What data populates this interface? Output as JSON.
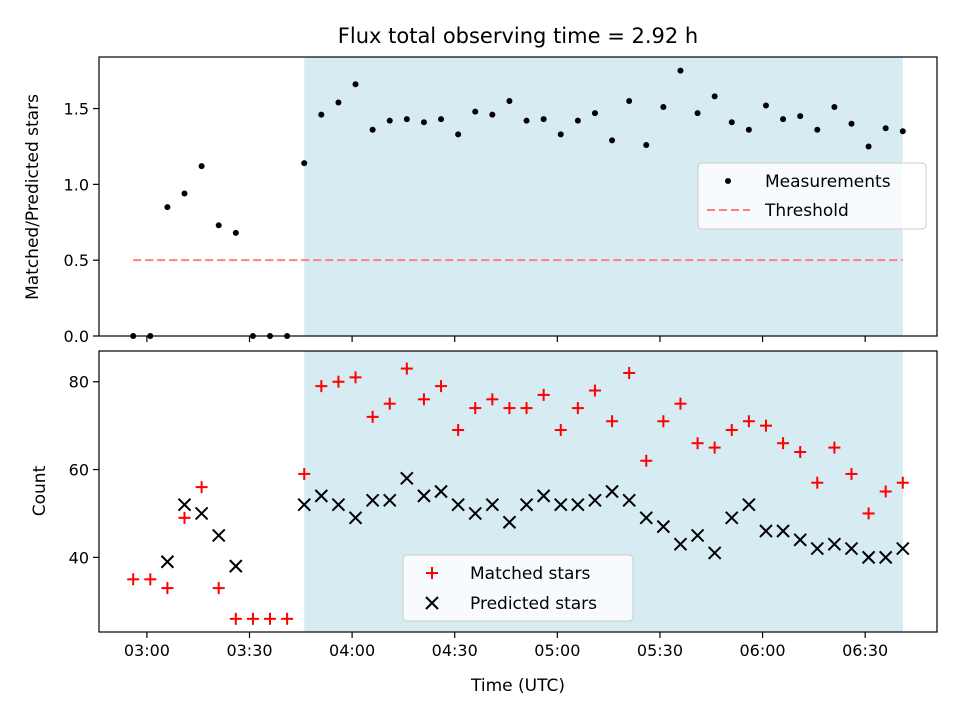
{
  "chart_data": [
    {
      "type": "scatter",
      "title": "Flux total observing time = 2.92 h",
      "ylabel": "Matched/Predicted stars",
      "xlabel": "",
      "ylim": [
        0,
        1.84
      ],
      "yticks": [
        "0.0",
        "0.5",
        "1.0",
        "1.5"
      ],
      "x_axis": "time (UTC), HH:MM",
      "xlim": [
        "02:46",
        "06:51"
      ],
      "shaded_region": {
        "start": "03:46",
        "end": "06:41",
        "color": "#add8e6"
      },
      "legend": {
        "placement": "center-right",
        "entries": [
          "Measurements",
          "Threshold"
        ]
      },
      "series": [
        {
          "name": "Measurements",
          "marker": "dot",
          "color": "#000000",
          "x": [
            "02:56",
            "03:01",
            "03:06",
            "03:11",
            "03:16",
            "03:21",
            "03:26",
            "03:31",
            "03:36",
            "03:41",
            "03:46",
            "03:51",
            "03:56",
            "04:01",
            "04:06",
            "04:11",
            "04:16",
            "04:21",
            "04:26",
            "04:31",
            "04:36",
            "04:41",
            "04:46",
            "04:51",
            "04:56",
            "05:01",
            "05:06",
            "05:11",
            "05:16",
            "05:21",
            "05:26",
            "05:31",
            "05:36",
            "05:41",
            "05:46",
            "05:51",
            "05:56",
            "06:01",
            "06:06",
            "06:11",
            "06:16",
            "06:21",
            "06:26",
            "06:31",
            "06:36",
            "06:41"
          ],
          "y": [
            0.0,
            0.0,
            0.85,
            0.94,
            1.12,
            0.73,
            0.68,
            0.0,
            0.0,
            0.0,
            1.14,
            1.46,
            1.54,
            1.66,
            1.36,
            1.42,
            1.43,
            1.41,
            1.43,
            1.33,
            1.48,
            1.46,
            1.55,
            1.42,
            1.43,
            1.33,
            1.42,
            1.47,
            1.29,
            1.55,
            1.26,
            1.51,
            1.75,
            1.47,
            1.58,
            1.41,
            1.36,
            1.52,
            1.43,
            1.45,
            1.36,
            1.51,
            1.4,
            1.25,
            1.37,
            1.35
          ]
        },
        {
          "name": "Threshold",
          "style": "dashed",
          "color": "#ff7f7f",
          "x": [
            "02:56",
            "06:41"
          ],
          "y": [
            0.5,
            0.5
          ]
        }
      ]
    },
    {
      "type": "scatter",
      "title": "",
      "ylabel": "Count",
      "xlabel": "Time (UTC)",
      "ylim": [
        23,
        87
      ],
      "yticks": [
        "40",
        "60",
        "80"
      ],
      "x_axis": "time (UTC), HH:MM",
      "xlim": [
        "02:46",
        "06:51"
      ],
      "xticks": [
        "03:00",
        "03:30",
        "04:00",
        "04:30",
        "05:00",
        "05:30",
        "06:00",
        "06:30"
      ],
      "shaded_region": {
        "start": "03:46",
        "end": "06:41",
        "color": "#add8e6"
      },
      "legend": {
        "placement": "lower-center",
        "entries": [
          "Matched stars",
          "Predicted stars"
        ]
      },
      "series": [
        {
          "name": "Matched stars",
          "marker": "plus",
          "color": "#ff0000",
          "x": [
            "02:56",
            "03:01",
            "03:06",
            "03:11",
            "03:16",
            "03:21",
            "03:26",
            "03:31",
            "03:36",
            "03:41",
            "03:46",
            "03:51",
            "03:56",
            "04:01",
            "04:06",
            "04:11",
            "04:16",
            "04:21",
            "04:26",
            "04:31",
            "04:36",
            "04:41",
            "04:46",
            "04:51",
            "04:56",
            "05:01",
            "05:06",
            "05:11",
            "05:16",
            "05:21",
            "05:26",
            "05:31",
            "05:36",
            "05:41",
            "05:46",
            "05:51",
            "05:56",
            "06:01",
            "06:06",
            "06:11",
            "06:16",
            "06:21",
            "06:26",
            "06:31",
            "06:36",
            "06:41"
          ],
          "y": [
            35,
            35,
            33,
            49,
            56,
            33,
            26,
            26,
            26,
            26,
            59,
            79,
            80,
            81,
            72,
            75,
            83,
            76,
            79,
            69,
            74,
            76,
            74,
            74,
            77,
            69,
            74,
            78,
            71,
            82,
            62,
            71,
            75,
            66,
            65,
            69,
            71,
            70,
            66,
            64,
            57,
            65,
            59,
            50,
            55,
            57
          ]
        },
        {
          "name": "Predicted stars",
          "marker": "x",
          "color": "#000000",
          "x": [
            "03:06",
            "03:11",
            "03:16",
            "03:21",
            "03:26",
            "03:46",
            "03:51",
            "03:56",
            "04:01",
            "04:06",
            "04:11",
            "04:16",
            "04:21",
            "04:26",
            "04:31",
            "04:36",
            "04:41",
            "04:46",
            "04:51",
            "04:56",
            "05:01",
            "05:06",
            "05:11",
            "05:16",
            "05:21",
            "05:26",
            "05:31",
            "05:36",
            "05:41",
            "05:46",
            "05:51",
            "05:56",
            "06:01",
            "06:06",
            "06:11",
            "06:16",
            "06:21",
            "06:26",
            "06:31",
            "06:36",
            "06:41"
          ],
          "y": [
            39,
            52,
            50,
            45,
            38,
            52,
            54,
            52,
            49,
            53,
            53,
            58,
            54,
            55,
            52,
            50,
            52,
            48,
            52,
            54,
            52,
            52,
            53,
            55,
            53,
            49,
            47,
            43,
            45,
            41,
            49,
            52,
            46,
            46,
            44,
            42,
            43,
            42,
            40,
            40,
            42
          ]
        }
      ]
    }
  ]
}
